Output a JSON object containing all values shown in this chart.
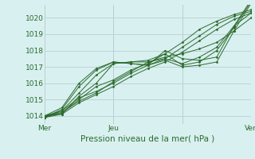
{
  "title": "",
  "xlabel": "Pression niveau de la mer( hPa )",
  "ylabel": "",
  "bg_color": "#d8f0f0",
  "plot_bg_color": "#d8f0f0",
  "grid_color": "#b8d0d0",
  "line_color": "#2d6b2d",
  "text_color": "#2d6b2d",
  "ylim": [
    1013.5,
    1020.8
  ],
  "yticks": [
    1014,
    1015,
    1016,
    1017,
    1018,
    1019,
    1020
  ],
  "xlim": [
    0,
    72
  ],
  "xtick_positions": [
    0,
    24,
    48,
    72
  ],
  "xtick_labels": [
    "Mer",
    "Jeu",
    "",
    "Ven"
  ],
  "series": [
    [
      0.0,
      1014.0,
      6.0,
      1014.2,
      12.0,
      1015.0,
      18.0,
      1015.8,
      24.0,
      1016.2,
      30.0,
      1016.8,
      36.0,
      1017.2,
      42.0,
      1017.8,
      48.0,
      1018.5,
      54.0,
      1019.3,
      60.0,
      1019.8,
      66.0,
      1020.2,
      72.0,
      1020.5
    ],
    [
      0.0,
      1014.0,
      6.0,
      1014.3,
      12.0,
      1015.1,
      18.0,
      1015.5,
      24.0,
      1016.0,
      30.0,
      1016.6,
      36.0,
      1017.1,
      42.0,
      1017.5,
      48.0,
      1018.2,
      54.0,
      1018.9,
      60.0,
      1019.6,
      66.0,
      1020.1,
      72.0,
      1020.4
    ],
    [
      0.0,
      1014.0,
      6.0,
      1014.1,
      12.0,
      1014.8,
      18.0,
      1015.3,
      24.0,
      1015.8,
      30.0,
      1016.4,
      36.0,
      1016.9,
      42.0,
      1017.3,
      48.0,
      1017.9,
      54.0,
      1018.6,
      60.0,
      1019.3,
      66.0,
      1019.9,
      72.0,
      1020.3
    ],
    [
      0.0,
      1013.9,
      6.0,
      1014.2,
      12.0,
      1014.9,
      18.0,
      1015.4,
      24.0,
      1016.1,
      30.0,
      1016.7,
      36.0,
      1017.3,
      42.0,
      1017.6,
      48.0,
      1017.8,
      54.0,
      1018.1,
      60.0,
      1018.5,
      66.0,
      1019.2,
      72.0,
      1020.0
    ],
    [
      0.0,
      1013.9,
      6.0,
      1014.1,
      12.0,
      1015.2,
      18.0,
      1016.0,
      24.0,
      1017.2,
      30.0,
      1017.3,
      36.0,
      1017.3,
      42.0,
      1017.5,
      48.0,
      1017.2,
      54.0,
      1017.6,
      60.0,
      1018.2,
      66.0,
      1019.5,
      72.0,
      1020.3
    ],
    [
      0.0,
      1013.9,
      6.0,
      1014.3,
      12.0,
      1015.4,
      18.0,
      1016.5,
      24.0,
      1017.2,
      30.0,
      1017.3,
      36.0,
      1017.4,
      42.0,
      1017.8,
      48.0,
      1017.1,
      54.0,
      1017.3,
      60.0,
      1018.0,
      66.0,
      1019.4,
      72.0,
      1021.0
    ],
    [
      0.0,
      1013.9,
      6.0,
      1014.4,
      12.0,
      1015.8,
      18.0,
      1016.8,
      24.0,
      1017.3,
      30.0,
      1017.2,
      36.0,
      1017.1,
      42.0,
      1018.0,
      48.0,
      1017.5,
      54.0,
      1017.4,
      60.0,
      1017.6,
      66.0,
      1019.5,
      72.0,
      1021.1
    ],
    [
      0.0,
      1014.0,
      6.0,
      1014.5,
      12.0,
      1016.0,
      18.0,
      1016.9,
      24.0,
      1017.3,
      30.0,
      1017.2,
      36.0,
      1017.1,
      42.0,
      1017.4,
      48.0,
      1017.0,
      54.0,
      1017.1,
      60.0,
      1017.3,
      66.0,
      1019.2,
      72.0,
      1020.9
    ]
  ]
}
